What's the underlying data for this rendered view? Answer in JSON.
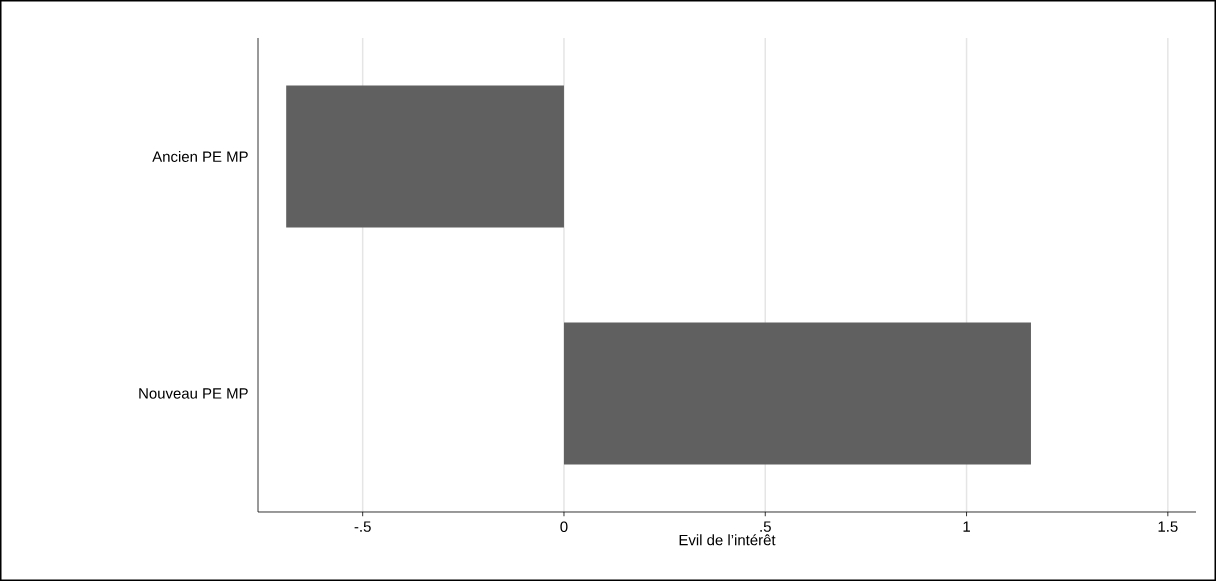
{
  "chart_data": {
    "type": "bar",
    "orientation": "horizontal",
    "xlabel": "Evil de l’intérêt",
    "categories": [
      "Ancien PE MP",
      "Nouveau PE MP"
    ],
    "values": [
      -0.69,
      1.16
    ],
    "color": "#606060",
    "xlim": [
      -0.76,
      1.57
    ],
    "xticks": [
      {
        "value": -0.5,
        "label": "-.5"
      },
      0,
      {
        "value": 0.5,
        "label": ".5"
      },
      1,
      {
        "value": 1.5,
        "label": "1.5"
      }
    ],
    "grid": "x"
  }
}
